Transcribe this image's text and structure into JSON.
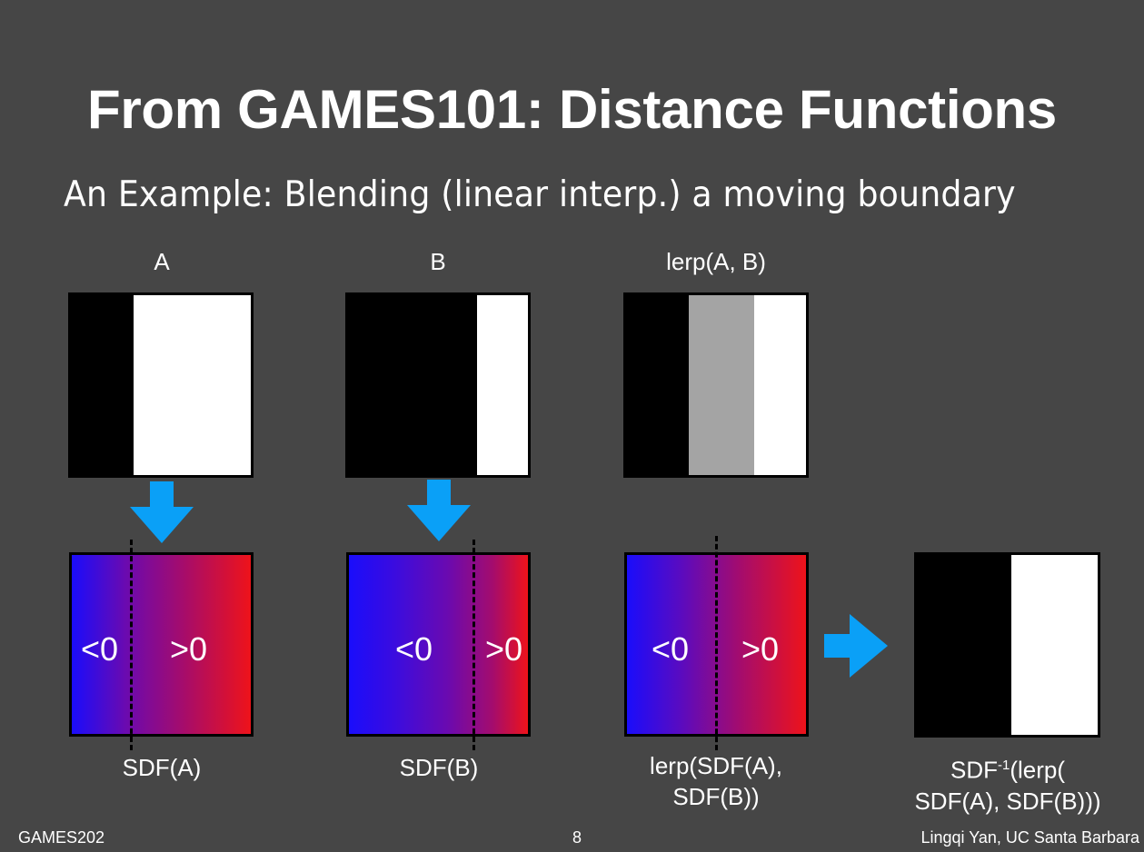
{
  "slide": {
    "title": "From GAMES101: Distance Functions",
    "subtitle": "An Example: Blending (linear interp.) a moving boundary",
    "page_number": "8",
    "footer_left": "GAMES202",
    "footer_right": "Lingqi Yan, UC Santa Barbara"
  },
  "panels": {
    "a": {
      "label": "A",
      "sdf_label": "SDF(A)",
      "neg": "<0",
      "pos": ">0"
    },
    "b": {
      "label": "B",
      "sdf_label": "SDF(B)",
      "neg": "<0",
      "pos": ">0"
    },
    "lerp": {
      "label": "lerp(A, B)",
      "sdf_label_line1": "lerp(SDF(A),",
      "sdf_label_line2": "SDF(B))",
      "neg": "<0",
      "pos": ">0"
    },
    "result": {
      "label_line1_prefix": "SDF",
      "label_line1_sup": "-1",
      "label_line1_suffix": "(lerp(",
      "label_line2": "SDF(A), SDF(B)))"
    }
  },
  "colors": {
    "background": "#464646",
    "arrow": "#0aa0f7",
    "sdf_negative": "#1a0dfb",
    "sdf_positive": "#ee131a",
    "gray": "#a4a4a4"
  }
}
